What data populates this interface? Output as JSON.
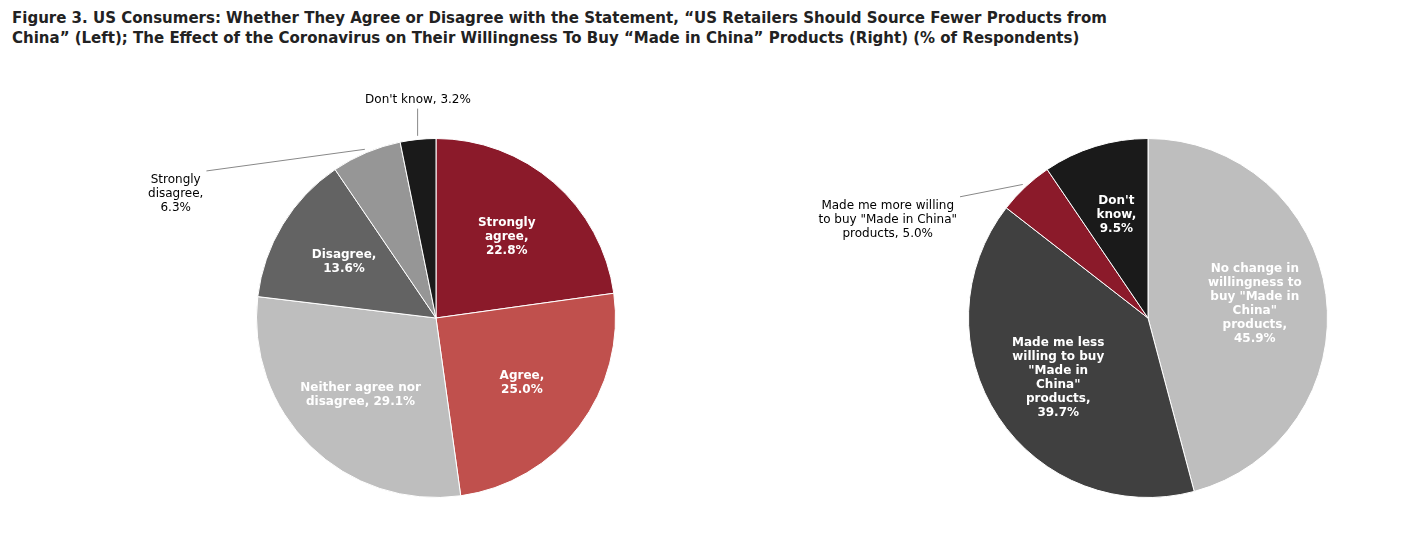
{
  "chart_data": [
    {
      "type": "pie",
      "title": "Figure 3. US Consumers: Whether They Agree or Disagree with the Statement, “US Retailers Should Source Fewer Products from\nChina” (Left); The Effect of the Coronavirus on Their Willingness To Buy “Made in China” Products (Right) (% of Respondents)",
      "values": [
        22.8,
        25.0,
        29.1,
        13.6,
        6.3,
        3.2
      ],
      "value_labels": [
        "Strongly\nagree,\n22.8%",
        "Agree,\n25.0%",
        "Neither agree nor\ndisagree, 29.1%",
        "Disagree,\n13.6%",
        "Strongly\ndisagree,\n6.3%",
        "Don't know, 3.2%"
      ],
      "colors": [
        "#8B1A2A",
        "#C0504D",
        "#BEBEBE",
        "#636363",
        "#969696",
        "#1A1A1A"
      ],
      "data_labels": true
    },
    {
      "type": "pie",
      "values": [
        45.9,
        39.7,
        5.0,
        9.5
      ],
      "value_labels": [
        "No change in\nwillingness to\nbuy \"Made in\nChina\"\nproducts,\n45.9%",
        "Made me less\nwilling to buy\n\"Made in\nChina\"\nproducts,\n39.7%",
        "Made me more willing\nto buy \"Made in China\"\nproducts, 5.0%",
        "Don't\nknow,\n9.5%"
      ],
      "colors": [
        "#BEBEBE",
        "#404040",
        "#8B1A2A",
        "#1A1A1A"
      ],
      "data_labels": true
    }
  ]
}
